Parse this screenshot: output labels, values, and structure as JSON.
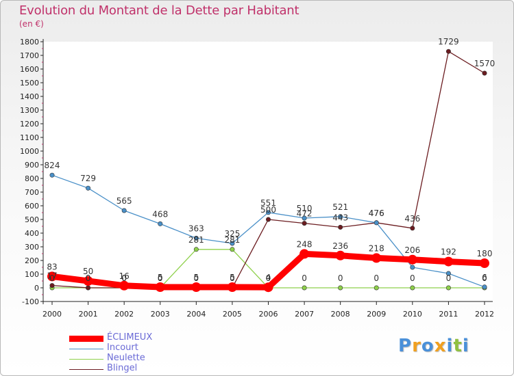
{
  "chart_data": {
    "type": "line",
    "title": "Evolution du Montant de la Dette par Habitant",
    "subtitle": "(en €)",
    "x": [
      "2000",
      "2001",
      "2002",
      "2003",
      "2004",
      "2005",
      "2006",
      "2007",
      "2008",
      "2009",
      "2010",
      "2011",
      "2012"
    ],
    "ylim": [
      -100,
      1800
    ],
    "yticks": [
      -100,
      0,
      100,
      200,
      300,
      400,
      500,
      600,
      700,
      800,
      900,
      1000,
      1100,
      1200,
      1300,
      1400,
      1500,
      1600,
      1700,
      1800
    ],
    "grid": false,
    "legend_position": "bottom-left",
    "series": [
      {
        "name": "ÉCLIMEUX",
        "color": "#ff0000",
        "values": [
          83,
          50,
          16,
          5,
          5,
          5,
          4,
          248,
          236,
          218,
          206,
          192,
          180
        ]
      },
      {
        "name": "Incourt",
        "color": "#4a90c8",
        "values": [
          824,
          729,
          565,
          468,
          363,
          325,
          551,
          510,
          521,
          476,
          150,
          105,
          6
        ]
      },
      {
        "name": "Neulette",
        "color": "#8ed04a",
        "values": [
          0,
          0,
          0,
          0,
          281,
          281,
          0,
          0,
          0,
          0,
          0,
          0,
          0
        ]
      },
      {
        "name": "Blingel",
        "color": "#6b1c20",
        "values": [
          17,
          0,
          0,
          0,
          0,
          0,
          500,
          472,
          443,
          476,
          436,
          1729,
          1570
        ]
      }
    ],
    "data_labels": [
      {
        "series": 0,
        "labels": [
          "83",
          "50",
          "16",
          "5",
          "5",
          "5",
          "4",
          "248",
          "236",
          "218",
          "206",
          "192",
          "180"
        ]
      },
      {
        "series": 1,
        "labels": [
          "824",
          "729",
          "565",
          "468",
          "363",
          "325",
          "551",
          "510",
          "521",
          "476",
          "",
          "",
          "6"
        ]
      },
      {
        "series": 2,
        "labels": [
          "0",
          "0",
          "0",
          "0",
          "281",
          "281",
          "0",
          "0",
          "0",
          "0",
          "0",
          "0",
          "0"
        ]
      },
      {
        "series": 3,
        "labels": [
          "17",
          "0",
          "0",
          "0",
          "0",
          "0",
          "500",
          "472",
          "443",
          "476",
          "436",
          "1729",
          "1570"
        ]
      }
    ]
  },
  "legend": {
    "items": [
      "ÉCLIMEUX",
      "Incourt",
      "Neulette",
      "Blingel"
    ]
  },
  "brand": {
    "letters": [
      "P",
      "r",
      "o",
      "x",
      "i",
      "t",
      "i"
    ],
    "colors": [
      "#4a90d9",
      "#f0a020",
      "#4a90d9",
      "#f0a020",
      "#4a90d9",
      "#90c040",
      "#4a90d9"
    ]
  }
}
